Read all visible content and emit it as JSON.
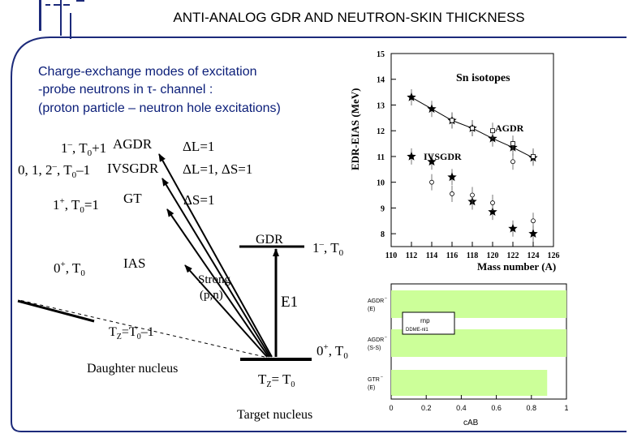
{
  "slide": {
    "title": "ANTI-ANALOG GDR AND NEUTRON-SKIN THICKNESS",
    "text_lines": [
      "Charge-exchange modes of excitation",
      "-probe neutrons in τ- channel :",
      "(proton particle – neutron hole excitations)"
    ],
    "colors": {
      "frame": "#1c2a7a",
      "text": "#0a1d78",
      "bar": "#ccff99"
    }
  },
  "diagram": {
    "states": [
      {
        "spin": "1",
        "parity": "–",
        "iso": "T",
        "iso_sub": "0",
        "iso_op": "+1",
        "name": "AGDR",
        "transition": "ΔL=1"
      },
      {
        "spin": "0, 1, 2",
        "parity": "–",
        "iso": "T",
        "iso_sub": "0",
        "iso_op": "–1",
        "name": "IVSGDR",
        "transition": "ΔL=1, ΔS=1"
      },
      {
        "spin": "1",
        "parity": "+",
        "iso": "T",
        "iso_sub": "0",
        "iso_op": "=1",
        "name": "GT",
        "transition": "ΔS=1"
      },
      {
        "spin": "0",
        "parity": "+",
        "iso": "T",
        "iso_sub": "0",
        "name": "IAS"
      }
    ],
    "probe_label": [
      "Strong",
      "(p,n)"
    ],
    "gdr_label": "GDR",
    "gdr_state": {
      "spin": "1",
      "parity": "–",
      "iso": "T",
      "iso_sub": "0"
    },
    "e1_label": "E1",
    "ground_state": {
      "spin": "0",
      "parity": "+",
      "iso": "T",
      "iso_sub": "0"
    },
    "daughter_tz": {
      "tz": "T",
      "tz_sub": "Z",
      "eq": "=T",
      "eq_sub": "0",
      "op": "–1"
    },
    "daughter_label": "Daughter nucleus",
    "target_tz": {
      "tz": "T",
      "tz_sub": "Z",
      "eq": "= T",
      "eq_sub": "0"
    },
    "target_label": "Target nucleus"
  },
  "chart_data": [
    {
      "type": "scatter",
      "title": "Sn isotopes",
      "ylabel": "EDR-EIAS (MeV)",
      "xlabel": "Mass number (A)",
      "xlim": [
        110,
        126
      ],
      "ylim": [
        7.5,
        15
      ],
      "x_ticks": [
        110,
        112,
        114,
        116,
        118,
        120,
        122,
        124,
        126
      ],
      "y_ticks": [
        8,
        9,
        10,
        11,
        12,
        13,
        14,
        15
      ],
      "series": [
        {
          "name": "AGDR",
          "marker": "star",
          "x": [
            112,
            114,
            116,
            118,
            120,
            122,
            124
          ],
          "y": [
            13.3,
            12.85,
            12.4,
            12.1,
            11.7,
            11.35,
            10.95
          ]
        },
        {
          "name": "IVSGDR",
          "marker": "star",
          "x": [
            112,
            114,
            116,
            118,
            120,
            122,
            124
          ],
          "y": [
            11.0,
            10.8,
            10.2,
            9.25,
            8.85,
            8.2,
            8.0
          ]
        },
        {
          "marker": "open-circle",
          "x": [
            114,
            116,
            118,
            120,
            122,
            124
          ],
          "y": [
            10.0,
            9.55,
            9.5,
            9.2,
            10.8,
            8.5
          ]
        },
        {
          "marker": "open-square",
          "x": [
            116,
            118,
            120,
            122,
            124
          ],
          "y": [
            12.4,
            12.1,
            12.0,
            11.5,
            11.0
          ]
        }
      ]
    },
    {
      "type": "bar",
      "orientation": "horizontal",
      "xlabel": "cAB",
      "xlim": [
        0,
        1
      ],
      "x_ticks": [
        "0",
        "0.2",
        "0.4",
        "0.6",
        "0.8",
        "1"
      ],
      "categories": [
        {
          "lines": [
            "AGDR",
            "(E)"
          ],
          "sup": "–"
        },
        {
          "lines": [
            "AGDR",
            "(S-S)"
          ],
          "sup": "–"
        },
        {
          "lines": [
            "GTR",
            "(E)"
          ],
          "sup": "–"
        }
      ],
      "values": [
        1.0,
        1.0,
        0.89
      ],
      "inset_lines": [
        "rnp",
        "DDME-nl1"
      ]
    }
  ]
}
